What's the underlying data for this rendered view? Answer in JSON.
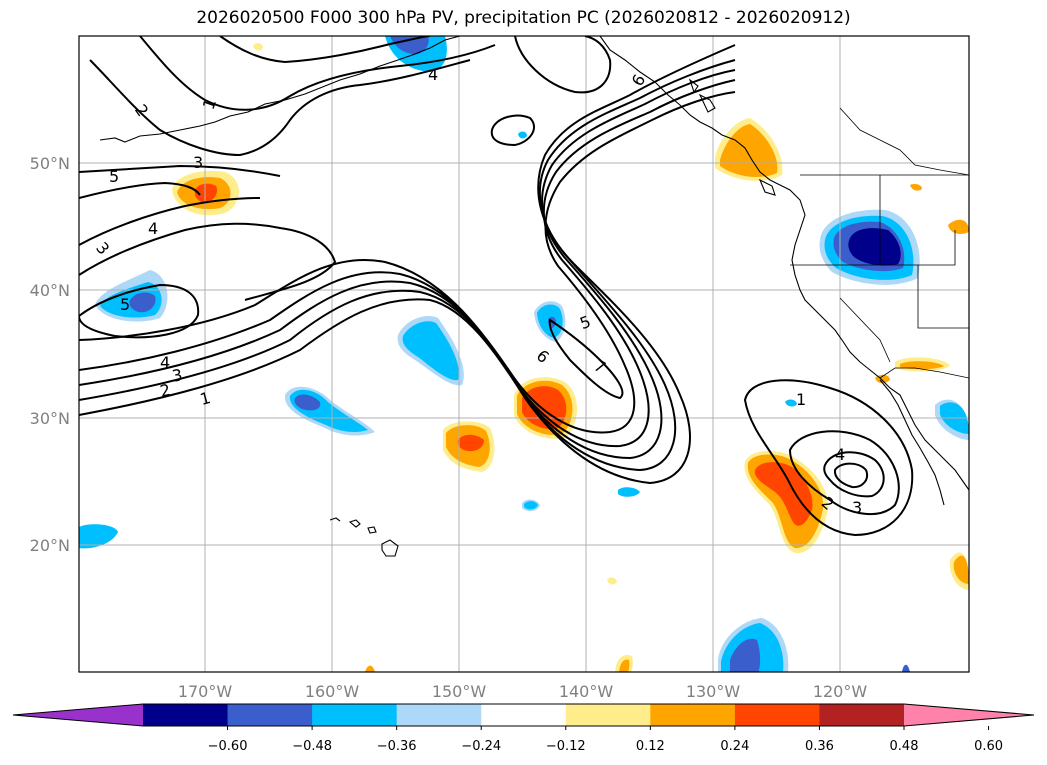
{
  "title": "2026020500 F000 300 hPa PV, precipitation PC (2026020812 - 2026020912)",
  "lat_labels": [
    "50°N",
    "40°N",
    "30°N",
    "20°N"
  ],
  "lon_labels": [
    "170°W",
    "160°W",
    "150°W",
    "140°W",
    "130°W",
    "120°W"
  ],
  "contour_labels": [
    "1",
    "2",
    "3",
    "4",
    "5",
    "6",
    "7"
  ],
  "colorbar": {
    "colors": [
      "#9932cc",
      "#00008b",
      "#3a5fcd",
      "#00bfff",
      "#add8f7",
      "#ffffff",
      "#ffec8b",
      "#ffa500",
      "#ff4500",
      "#b22222",
      "#ff82ab"
    ],
    "tick_labels": [
      "−0.60",
      "−0.48",
      "−0.36",
      "−0.24",
      "−0.12",
      "0.12",
      "0.24",
      "0.36",
      "0.48",
      "0.60"
    ]
  },
  "colors": {
    "contour": "#000000",
    "grid": "#b0b0b0",
    "axis_labels": "#808080"
  }
}
